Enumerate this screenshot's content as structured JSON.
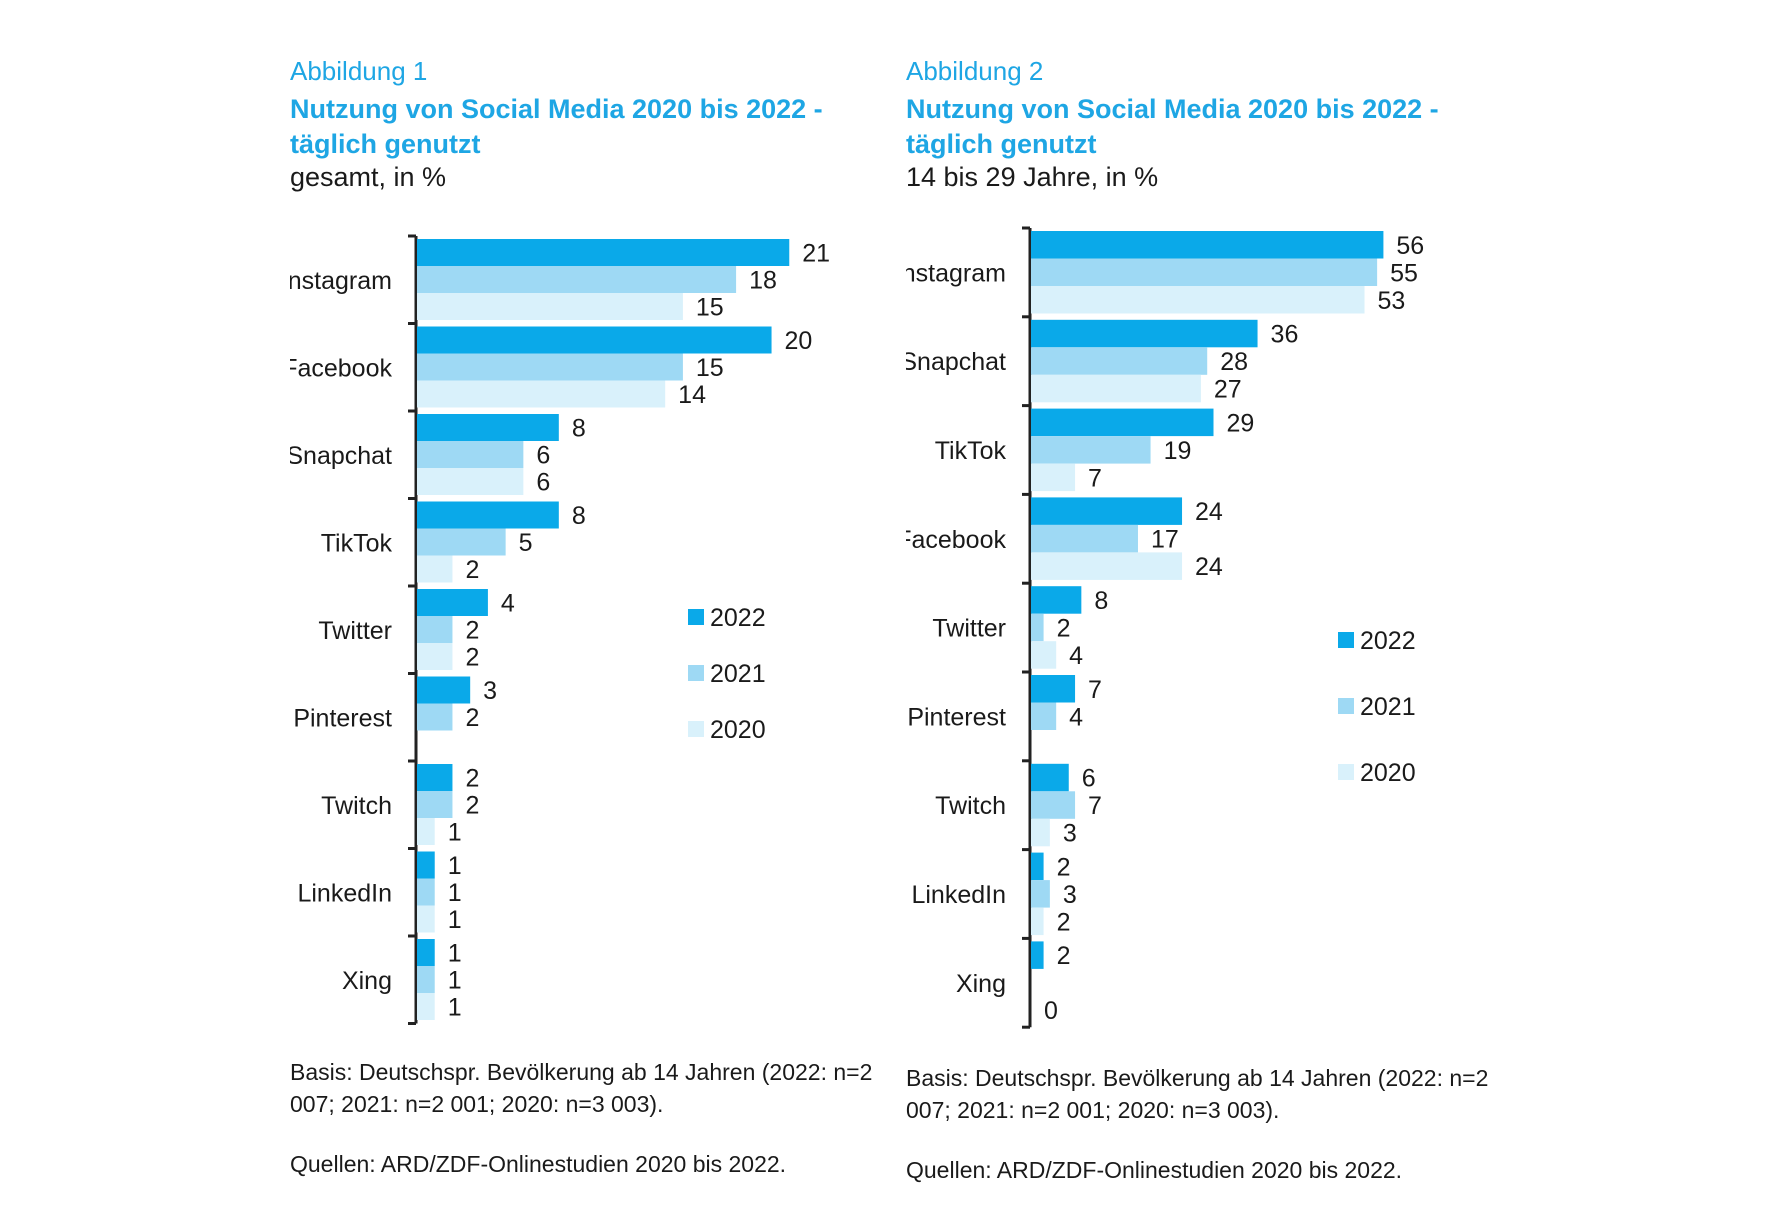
{
  "colors": {
    "y2022": "#0aa9e9",
    "y2021": "#9ed9f4",
    "y2020": "#d9f1fb",
    "accent": "#1ea6e4"
  },
  "figures": [
    {
      "label": "Abbildung 1",
      "title": "Nutzung von Social Media 2020 bis 2022 - täglich genutzt",
      "subtitle": "gesamt, in %",
      "basis": "Basis: Deutschspr. Bevölkerung ab 14 Jahren (2022: n=2 007; 2021: n=2 001; 2020: n=3 003).",
      "sources": "Quellen: ARD/ZDF-Onlinestudien 2020 bis 2022."
    },
    {
      "label": "Abbildung 2",
      "title": "Nutzung von Social Media 2020 bis 2022 - täglich genutzt",
      "subtitle": "14 bis 29 Jahre, in %",
      "basis": "Basis: Deutschspr. Bevölkerung ab 14 Jahren (2022: n=2 007; 2021: n=2 001; 2020: n=3 003).",
      "sources": "Quellen: ARD/ZDF-Onlinestudien 2020 bis 2022."
    }
  ],
  "chart_data": [
    {
      "type": "bar",
      "orientation": "horizontal",
      "title": "Nutzung von Social Media 2020 bis 2022 - täglich genutzt",
      "subtitle": "gesamt, in %",
      "categories": [
        "Instagram",
        "Facebook",
        "Snapchat",
        "TikTok",
        "Twitter",
        "Pinterest",
        "Twitch",
        "LinkedIn",
        "Xing"
      ],
      "series": [
        {
          "name": "2022",
          "values": [
            21,
            20,
            8,
            8,
            4,
            3,
            2,
            1,
            1
          ]
        },
        {
          "name": "2021",
          "values": [
            18,
            15,
            6,
            5,
            2,
            2,
            2,
            1,
            1
          ]
        },
        {
          "name": "2020",
          "values": [
            15,
            14,
            6,
            2,
            2,
            null,
            1,
            1,
            1
          ]
        }
      ],
      "xlim": [
        0,
        22
      ],
      "legend": "right-middle",
      "grid": false
    },
    {
      "type": "bar",
      "orientation": "horizontal",
      "title": "Nutzung von Social Media 2020 bis 2022 - täglich genutzt",
      "subtitle": "14 bis 29 Jahre, in %",
      "categories": [
        "Instagram",
        "Snapchat",
        "TikTok",
        "Facebook",
        "Twitter",
        "Pinterest",
        "Twitch",
        "LinkedIn",
        "Xing"
      ],
      "series": [
        {
          "name": "2022",
          "values": [
            56,
            36,
            29,
            24,
            8,
            7,
            6,
            2,
            2
          ]
        },
        {
          "name": "2021",
          "values": [
            55,
            28,
            19,
            17,
            2,
            4,
            7,
            3,
            null
          ]
        },
        {
          "name": "2020",
          "values": [
            53,
            27,
            7,
            24,
            4,
            null,
            3,
            2,
            0
          ]
        }
      ],
      "xlim": [
        0,
        58
      ],
      "legend": "right-middle",
      "grid": false
    }
  ]
}
